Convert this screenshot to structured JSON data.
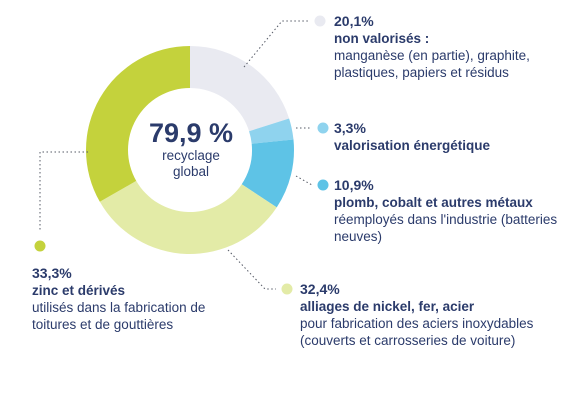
{
  "chart_data": {
    "type": "pie",
    "center": {
      "value": "79,9 %",
      "line1": "recyclage",
      "line2": "global"
    },
    "slices": [
      {
        "percent": "20,1%",
        "value": 20.1,
        "bold": "non valorisés :",
        "text": "manganèse (en partie), graphite, plastiques, papiers et résidus",
        "color": "#e9eaf1"
      },
      {
        "percent": "3,3%",
        "value": 3.3,
        "bold": "valorisation énergétique",
        "text": "",
        "color": "#8fd3ee"
      },
      {
        "percent": "10,9%",
        "value": 10.9,
        "bold": "plomb, cobalt et autres métaux",
        "text": "réemployés dans l'industrie (batteries neuves)",
        "color": "#5ec3e6"
      },
      {
        "percent": "32,4%",
        "value": 32.4,
        "bold": "alliages de nickel, fer, acier",
        "text": "pour fabrication des aciers inoxydables (couverts et carrosseries de voiture)",
        "color": "#e3eba7"
      },
      {
        "percent": "33,3%",
        "value": 33.3,
        "bold": "zinc et dérivés",
        "text": "utilisés dans la fabrication de toitures et de gouttières",
        "color": "#c4d23c"
      }
    ]
  }
}
